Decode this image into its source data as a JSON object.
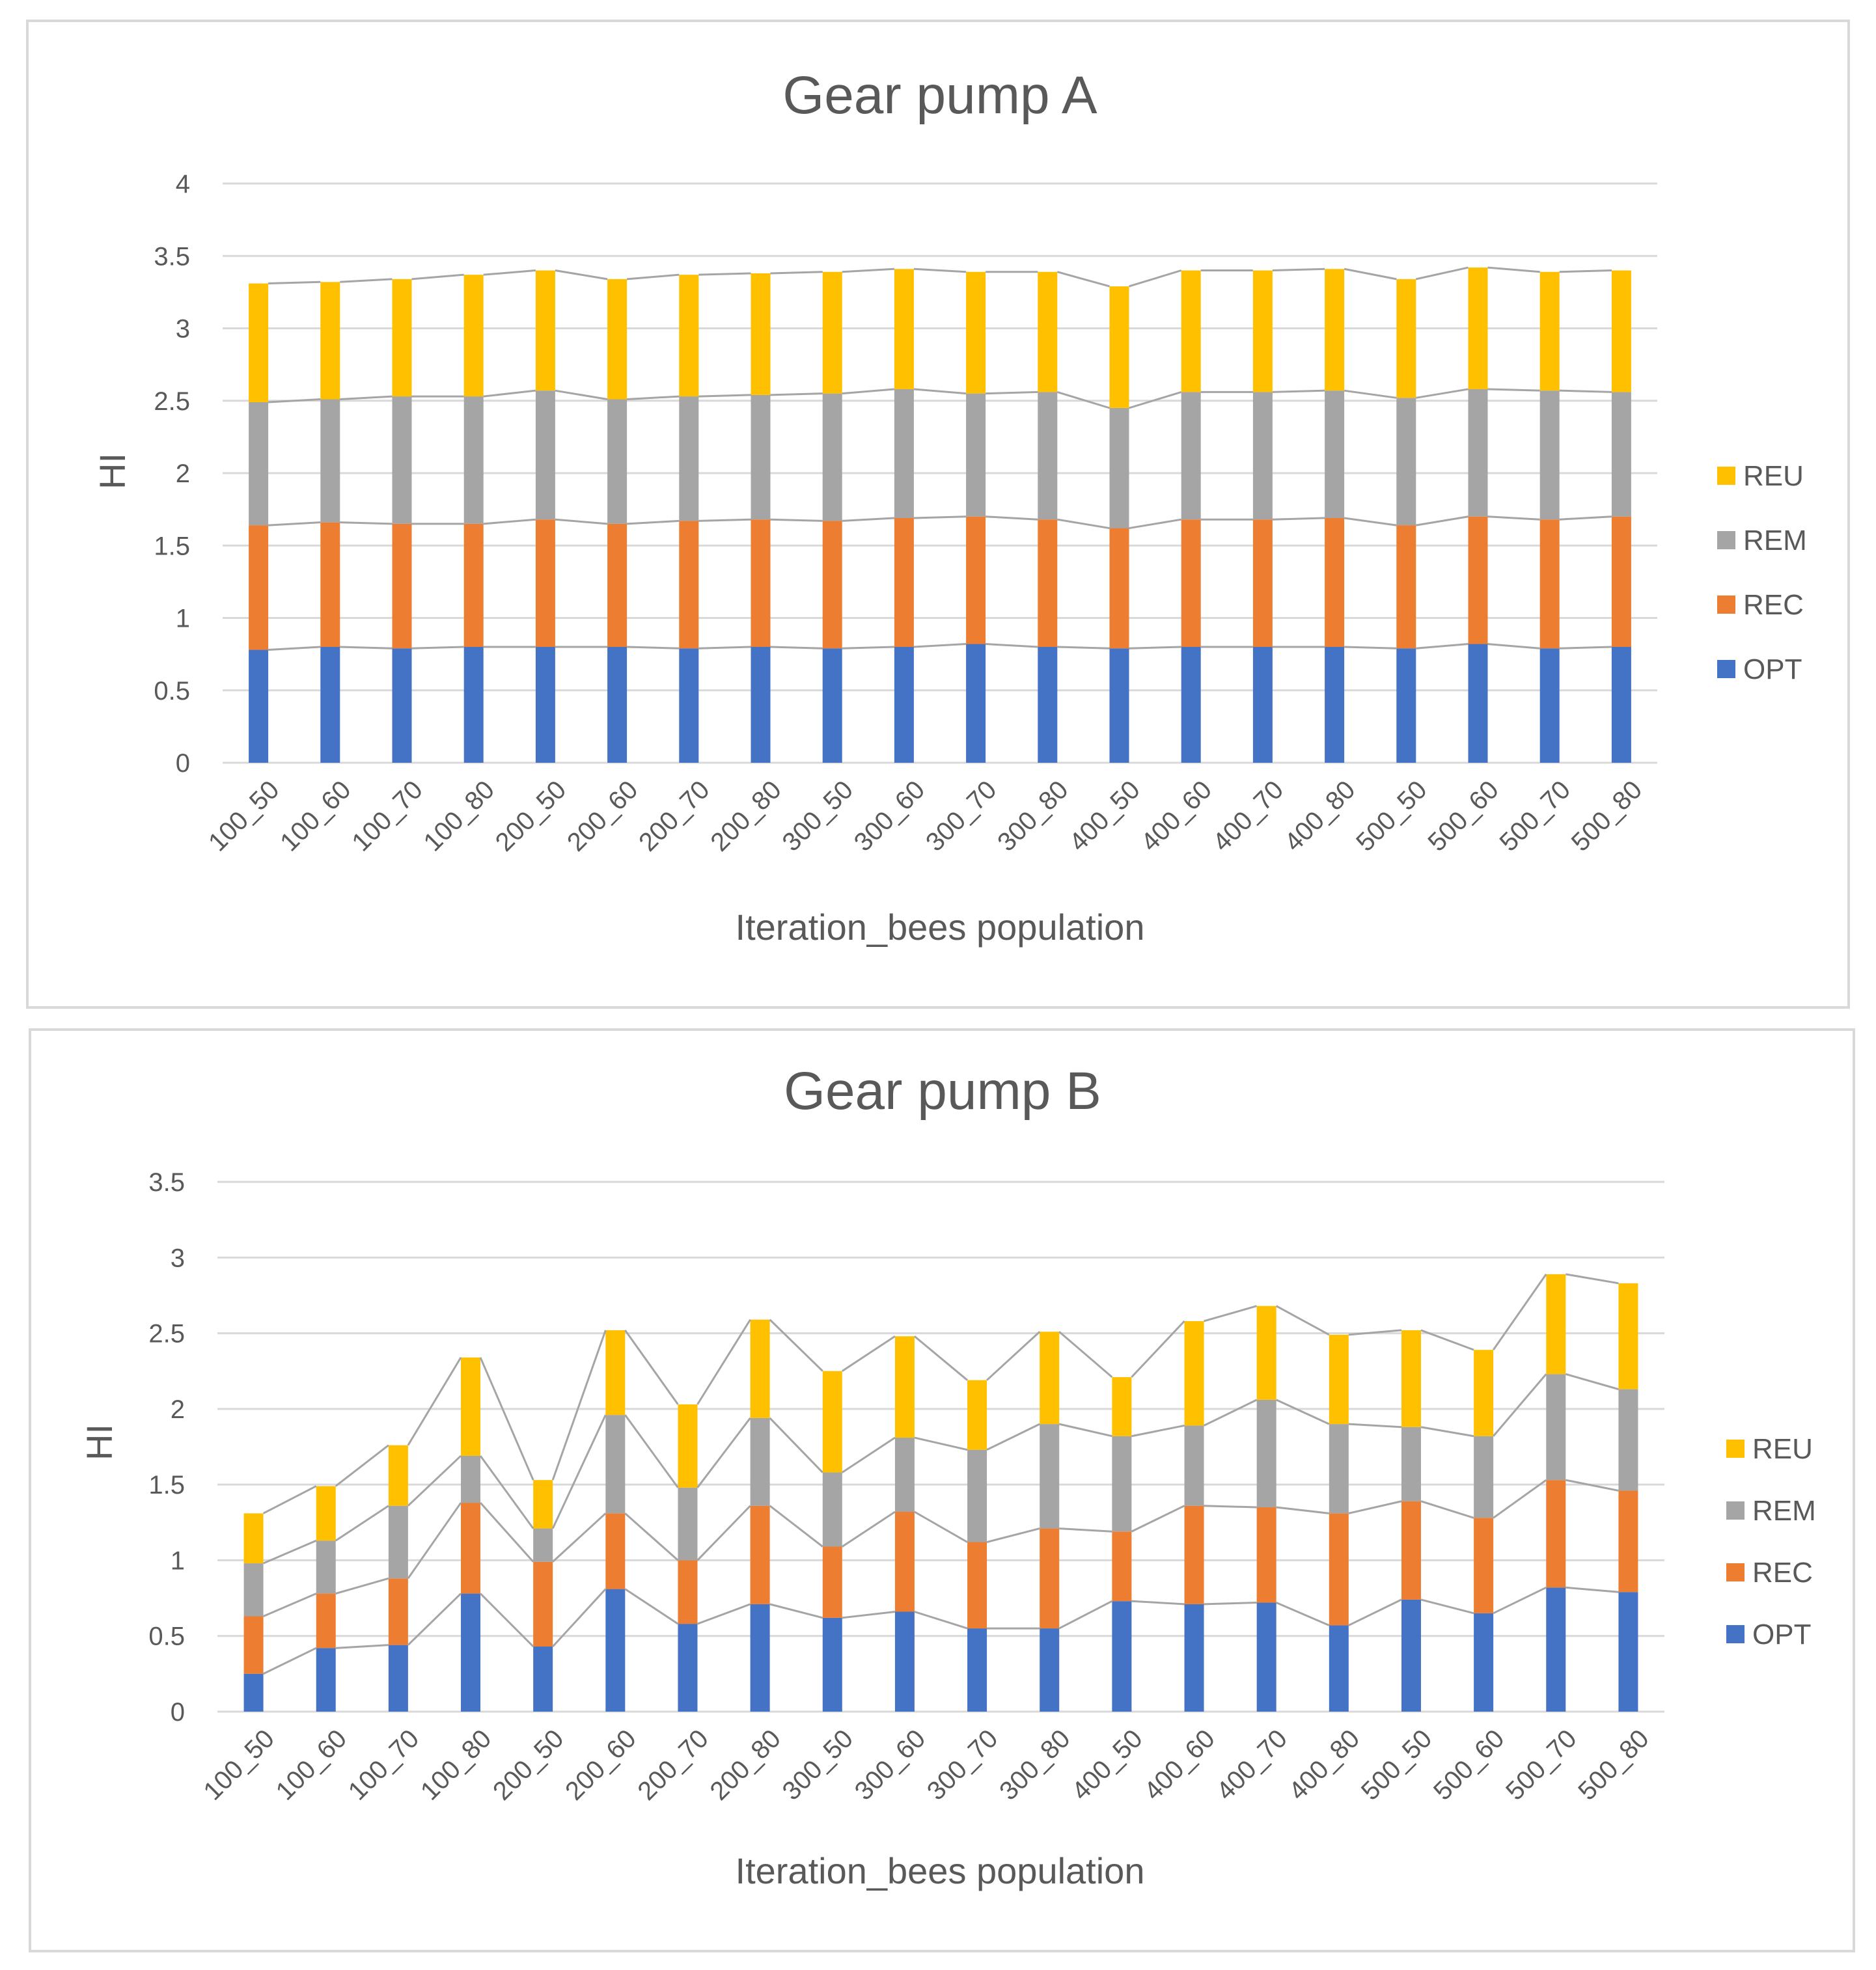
{
  "chart_data": [
    {
      "type": "stacked-bar",
      "title": "Gear pump A",
      "xlabel": "Iteration_bees population",
      "ylabel": "HI",
      "ylim": [
        0,
        4
      ],
      "yticks": [
        "0",
        "0.5",
        "1",
        "1.5",
        "2",
        "2.5",
        "3",
        "3.5",
        "4"
      ],
      "categories": [
        "100_50",
        "100_60",
        "100_70",
        "100_80",
        "200_50",
        "200_60",
        "200_70",
        "200_80",
        "300_50",
        "300_60",
        "300_70",
        "300_80",
        "400_50",
        "400_60",
        "400_70",
        "400_80",
        "500_50",
        "500_60",
        "500_70",
        "500_80"
      ],
      "series": [
        {
          "name": "OPT",
          "color": "#4472c4",
          "values": [
            0.78,
            0.8,
            0.79,
            0.8,
            0.8,
            0.8,
            0.79,
            0.8,
            0.79,
            0.8,
            0.82,
            0.8,
            0.79,
            0.8,
            0.8,
            0.8,
            0.79,
            0.82,
            0.79,
            0.8
          ]
        },
        {
          "name": "REC",
          "color": "#ed7d31",
          "values": [
            0.86,
            0.86,
            0.86,
            0.85,
            0.88,
            0.85,
            0.88,
            0.88,
            0.88,
            0.89,
            0.88,
            0.88,
            0.83,
            0.88,
            0.88,
            0.89,
            0.85,
            0.88,
            0.89,
            0.9
          ]
        },
        {
          "name": "REM",
          "color": "#a5a5a5",
          "values": [
            0.85,
            0.85,
            0.88,
            0.88,
            0.89,
            0.86,
            0.86,
            0.86,
            0.88,
            0.89,
            0.85,
            0.88,
            0.83,
            0.88,
            0.88,
            0.88,
            0.88,
            0.88,
            0.89,
            0.86
          ]
        },
        {
          "name": "REU",
          "color": "#ffc000",
          "values": [
            0.82,
            0.81,
            0.81,
            0.84,
            0.83,
            0.83,
            0.84,
            0.84,
            0.84,
            0.83,
            0.84,
            0.83,
            0.84,
            0.84,
            0.84,
            0.84,
            0.82,
            0.84,
            0.82,
            0.84
          ]
        }
      ],
      "legend": "right"
    },
    {
      "type": "stacked-bar",
      "title": "Gear pump B",
      "xlabel": "Iteration_bees population",
      "ylabel": "HI",
      "ylim": [
        0,
        3.5
      ],
      "yticks": [
        "0",
        "0.5",
        "1",
        "1.5",
        "2",
        "2.5",
        "3",
        "3.5"
      ],
      "categories": [
        "100_50",
        "100_60",
        "100_70",
        "100_80",
        "200_50",
        "200_60",
        "200_70",
        "200_80",
        "300_50",
        "300_60",
        "300_70",
        "300_80",
        "400_50",
        "400_60",
        "400_70",
        "400_80",
        "500_50",
        "500_60",
        "500_70",
        "500_80"
      ],
      "series": [
        {
          "name": "OPT",
          "color": "#4472c4",
          "values": [
            0.25,
            0.42,
            0.44,
            0.78,
            0.43,
            0.81,
            0.58,
            0.71,
            0.62,
            0.66,
            0.55,
            0.55,
            0.73,
            0.71,
            0.72,
            0.57,
            0.74,
            0.65,
            0.82,
            0.79
          ]
        },
        {
          "name": "REC",
          "color": "#ed7d31",
          "values": [
            0.38,
            0.36,
            0.44,
            0.6,
            0.56,
            0.5,
            0.42,
            0.65,
            0.47,
            0.66,
            0.57,
            0.66,
            0.46,
            0.65,
            0.63,
            0.74,
            0.65,
            0.63,
            0.71,
            0.67
          ]
        },
        {
          "name": "REM",
          "color": "#a5a5a5",
          "values": [
            0.35,
            0.35,
            0.48,
            0.31,
            0.22,
            0.65,
            0.48,
            0.58,
            0.49,
            0.49,
            0.61,
            0.69,
            0.63,
            0.53,
            0.71,
            0.59,
            0.49,
            0.54,
            0.7,
            0.67
          ]
        },
        {
          "name": "REU",
          "color": "#ffc000",
          "values": [
            0.33,
            0.36,
            0.4,
            0.65,
            0.32,
            0.56,
            0.55,
            0.65,
            0.67,
            0.67,
            0.46,
            0.61,
            0.39,
            0.69,
            0.62,
            0.59,
            0.64,
            0.57,
            0.66,
            0.7
          ]
        }
      ],
      "legend": "right"
    }
  ]
}
